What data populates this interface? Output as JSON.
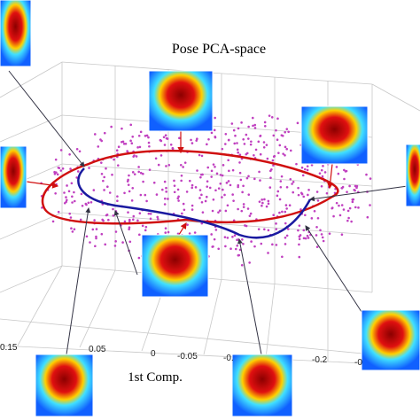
{
  "title": "Pose PCA-space",
  "axis_label": "1st Comp.",
  "tick_labels": [
    "0.15",
    "0.05",
    "0",
    "-0.05",
    "-0.",
    "-0.2",
    "-0"
  ]
}
